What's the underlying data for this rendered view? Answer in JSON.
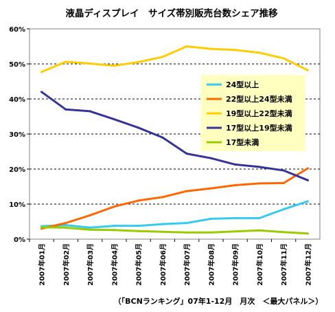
{
  "chart_data": {
    "type": "line",
    "title": "液晶ディスプレイ　サイズ帯別販売台数シェア推移",
    "footer": "（「BCNランキング」07年1-12月　月次　＜最大パネル＞）",
    "categories": [
      "2007年01月",
      "2007年02月",
      "2007年03月",
      "2007年04月",
      "2007年05月",
      "2007年06月",
      "2007年07月",
      "2007年08月",
      "2007年09月",
      "2007年10月",
      "2007年11月",
      "2007年12月"
    ],
    "y_ticks": [
      "0%",
      "10%",
      "20%",
      "30%",
      "40%",
      "50%",
      "60%"
    ],
    "ylim": [
      0,
      60
    ],
    "grid": "horizontal-dashed",
    "legend_placement": "inside-right",
    "colors": {
      "plot_border": "#808080",
      "grid": "#000000",
      "legend_bg": "#ffffc0"
    },
    "series": [
      {
        "name": "24型以上",
        "color": "#33ccee",
        "values": [
          3.7,
          4.0,
          3.3,
          3.8,
          3.8,
          4.3,
          4.6,
          5.8,
          6.0,
          6.0,
          8.5,
          10.8
        ]
      },
      {
        "name": "22型以上24型未満",
        "color": "#ff6600",
        "values": [
          3.0,
          4.6,
          6.8,
          9.3,
          11.0,
          12.0,
          13.7,
          14.5,
          15.4,
          15.9,
          16.0,
          20.2
        ]
      },
      {
        "name": "19型以上22型未満",
        "color": "#ffcc00",
        "values": [
          47.7,
          50.6,
          50.1,
          49.5,
          50.5,
          52.0,
          55.0,
          54.3,
          54.0,
          53.2,
          51.6,
          48.2
        ]
      },
      {
        "name": "17型以上19型未満",
        "color": "#333399",
        "values": [
          42.0,
          37.0,
          36.5,
          34.2,
          31.8,
          29.0,
          24.4,
          23.1,
          21.3,
          20.6,
          19.6,
          16.8
        ]
      },
      {
        "name": "17型未満",
        "color": "#99cc00",
        "values": [
          3.4,
          3.3,
          2.7,
          2.6,
          2.3,
          2.1,
          1.9,
          1.9,
          2.2,
          2.5,
          2.0,
          1.6
        ]
      }
    ]
  }
}
